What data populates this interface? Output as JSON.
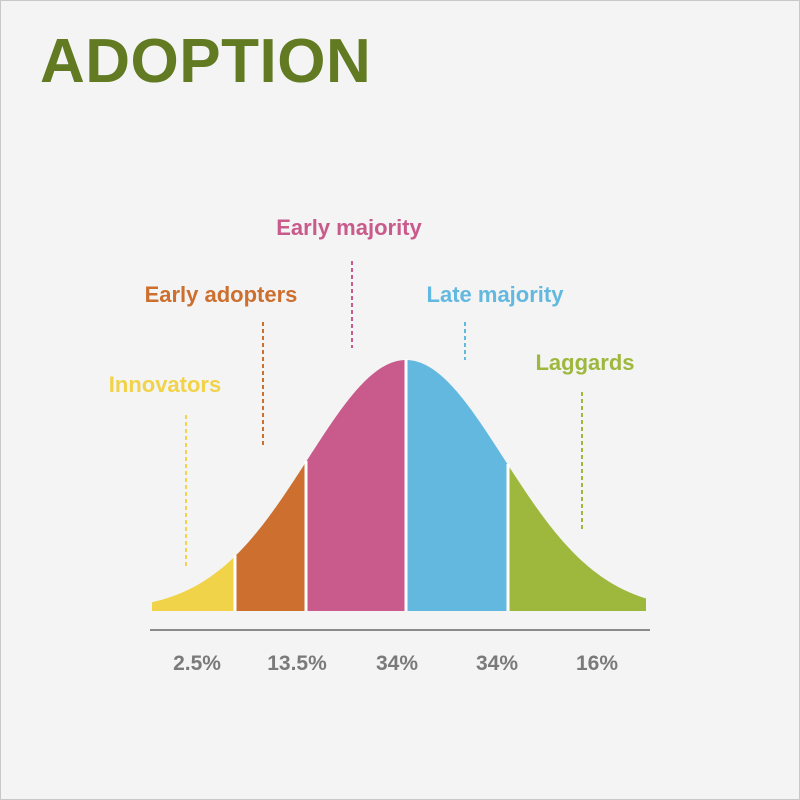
{
  "title": "ADOPTION",
  "colors": {
    "title": "#627a22",
    "background": "#f4f4f4",
    "axis": "#8a8a8a",
    "tick_text": "#7a7a7a"
  },
  "chart_data": {
    "type": "area",
    "title": "ADOPTION",
    "xlabel": "",
    "ylabel": "",
    "distribution": "normal",
    "grid": false,
    "legend": "none",
    "segments": [
      {
        "label": "Innovators",
        "value_label": "2.5%",
        "value": 2.5,
        "color": "#f1d34a"
      },
      {
        "label": "Early adopters",
        "value_label": "13.5%",
        "value": 13.5,
        "color": "#cc6f2f"
      },
      {
        "label": "Early majority",
        "value_label": "34%",
        "value": 34,
        "color": "#c95a8c"
      },
      {
        "label": "Late majority",
        "value_label": "34%",
        "value": 34,
        "color": "#63b8e0"
      },
      {
        "label": "Laggards",
        "value_label": "16%",
        "value": 16,
        "color": "#9eb83e"
      }
    ]
  }
}
